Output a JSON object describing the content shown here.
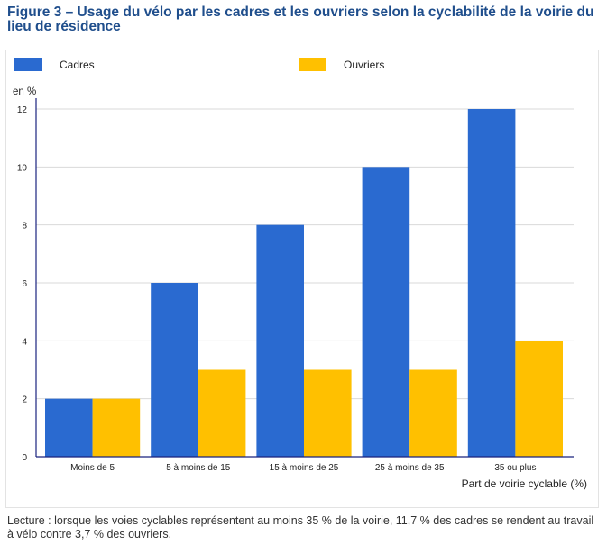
{
  "title": "Figure 3 – Usage du vélo par les cadres et les ouvriers selon la cyclabilité de la voirie du lieu de résidence",
  "colors": {
    "cadres": "#2a6ad0",
    "ouvriers": "#ffc000",
    "axis": "#1a237e",
    "grid": "#d9d9d9",
    "title": "#1f4e8c"
  },
  "chart_data": {
    "type": "bar",
    "categories": [
      "Moins de 5",
      "5 à moins de 15",
      "15 à moins de 25",
      "25 à moins de 35",
      "35 ou plus"
    ],
    "series": [
      {
        "name": "Cadres",
        "values": [
          2,
          6,
          8,
          10,
          12
        ]
      },
      {
        "name": "Ouvriers",
        "values": [
          2,
          3,
          3,
          3,
          4
        ]
      }
    ],
    "ylabel": "en %",
    "xlabel": "Part de voirie cyclable (%)",
    "ylim": [
      0,
      12
    ],
    "yticks": [
      0,
      2,
      4,
      6,
      8,
      10,
      12
    ],
    "grid": true,
    "legend": "top"
  },
  "note": "Lecture : lorsque les voies cyclables représentent au moins 35 % de la voirie, 11,7 % des cadres se rendent au travail à vélo contre 3,7 % des ouvriers."
}
